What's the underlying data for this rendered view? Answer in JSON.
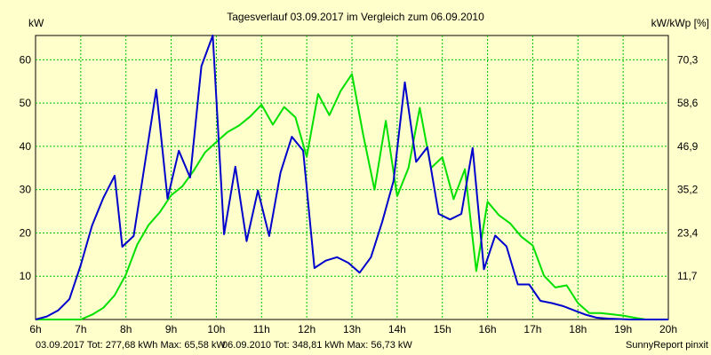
{
  "colors": {
    "background": "#ffffcc",
    "grid": "#00c000",
    "series_2017": "#0000cc",
    "series_2010": "#00e000",
    "footer_2017": "#0000cc",
    "footer_2010": "#00c000"
  },
  "chart_data": {
    "type": "line",
    "title": "Tagesverlauf 03.09.2017 im Vergleich zum 06.09.2010",
    "ylabel_left": "kW",
    "ylabel_right": "kW/kWp [%]",
    "xlim": [
      6,
      20
    ],
    "ylim": [
      0,
      65.6
    ],
    "x_ticks": [
      "6h",
      "7h",
      "8h",
      "9h",
      "10h",
      "11h",
      "12h",
      "13h",
      "14h",
      "15h",
      "16h",
      "17h",
      "18h",
      "19h",
      "20h"
    ],
    "y_ticks_left": [
      "10",
      "20",
      "30",
      "40",
      "50",
      "60"
    ],
    "y_ticks_right": [
      "11,7",
      "23,4",
      "35,2",
      "46,9",
      "58,6",
      "70,3"
    ],
    "grid": true,
    "series": [
      {
        "key": "s2017",
        "x": [
          6,
          6.25,
          6.5,
          6.75,
          7,
          7.25,
          7.5,
          7.75,
          7.92,
          8.17,
          8.42,
          8.67,
          8.92,
          9.17,
          9.42,
          9.67,
          9.92,
          10.17,
          10.42,
          10.67,
          10.92,
          11.17,
          11.42,
          11.67,
          11.92,
          12.17,
          12.42,
          12.67,
          12.92,
          13.17,
          13.42,
          13.67,
          13.92,
          14.17,
          14.42,
          14.67,
          14.92,
          15.17,
          15.42,
          15.67,
          15.92,
          16.17,
          16.42,
          16.67,
          16.92,
          17.17,
          17.42,
          17.67,
          17.92,
          18.17,
          18.42,
          18.67,
          18.92,
          19.17,
          19.42,
          19.67,
          20
        ],
        "y": [
          0,
          0.7,
          2.1,
          4.7,
          12.6,
          21.7,
          28.1,
          33.2,
          16.8,
          19.3,
          36.1,
          53.1,
          27.9,
          39,
          32.8,
          58.5,
          65.6,
          19.7,
          35.3,
          18.1,
          29.8,
          19.3,
          33.9,
          42.2,
          39,
          11.9,
          13.6,
          14.4,
          13.1,
          10.8,
          14.4,
          22.6,
          32,
          54.8,
          36.4,
          39.8,
          24.4,
          23.1,
          24.4,
          39.6,
          11.6,
          19.4,
          16.9,
          8.1,
          8.1,
          4.3,
          3.8,
          3.1,
          2.1,
          1.1,
          0.4,
          0.2,
          0.1,
          0,
          0,
          0,
          0
        ]
      },
      {
        "key": "s2010",
        "x": [
          6,
          7,
          7.25,
          7.5,
          7.75,
          8,
          8.25,
          8.5,
          8.75,
          9,
          9.25,
          9.5,
          9.75,
          10,
          10.25,
          10.5,
          10.75,
          11,
          11.25,
          11.5,
          11.75,
          12,
          12.25,
          12.5,
          12.75,
          13,
          13.25,
          13.5,
          13.75,
          14,
          14.25,
          14.5,
          14.75,
          15,
          15.25,
          15.5,
          15.75,
          16,
          16.25,
          16.5,
          16.75,
          17,
          17.25,
          17.5,
          17.75,
          18,
          18.25,
          18.5,
          18.75,
          19,
          19.25,
          19.5,
          19.75,
          20
        ],
        "y": [
          0,
          0,
          1.1,
          2.7,
          5.6,
          10.4,
          17.3,
          21.8,
          24.8,
          28.7,
          30.8,
          34.4,
          38.6,
          41,
          43.3,
          44.8,
          46.9,
          49.6,
          45,
          49.1,
          46.7,
          37.6,
          52.1,
          47.2,
          52.8,
          56.7,
          42.6,
          30,
          45.9,
          28.5,
          35,
          48.9,
          35,
          37.5,
          27.8,
          34.7,
          11.2,
          27.2,
          24.1,
          22.2,
          19.1,
          17.1,
          10.1,
          7.4,
          7.9,
          3.8,
          1.5,
          1.5,
          1.2,
          0.9,
          0.4,
          0,
          0,
          0
        ]
      }
    ]
  },
  "footer": {
    "text_2017": "03.09.2017 Tot: 277,68 kWh Max: 65,58 kW",
    "text_2010": "06.09.2010 Tot: 348,81 kWh Max: 56,73 kW",
    "credit": "SunnyReport pinxit"
  }
}
